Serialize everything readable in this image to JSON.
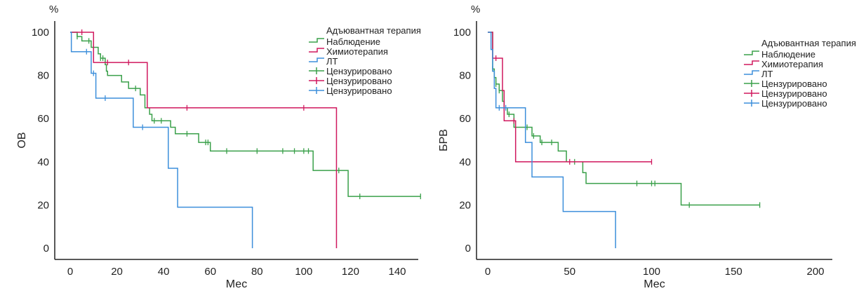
{
  "chart_data": [
    {
      "type": "line",
      "subtype": "kaplan-meier",
      "ylabel": "ОВ",
      "yunit": "%",
      "xlabel": "Мес",
      "xlim": [
        -8,
        160
      ],
      "ylim": [
        -8,
        106
      ],
      "xticks": [
        0,
        20,
        40,
        60,
        80,
        100,
        120,
        140
      ],
      "yticks": [
        0,
        20,
        40,
        60,
        80,
        100
      ],
      "legend": {
        "title": "Адъювантная терапия",
        "placement": "top-right"
      },
      "series": [
        {
          "name": "Наблюдение",
          "color": "#3aa04a",
          "censor_label": "Цензурировано",
          "steps": [
            [
              0,
              100
            ],
            [
              3,
              98
            ],
            [
              5,
              96
            ],
            [
              9,
              93
            ],
            [
              12,
              90
            ],
            [
              13,
              88
            ],
            [
              15,
              85
            ],
            [
              15.5,
              82
            ],
            [
              16,
              80
            ],
            [
              22,
              77
            ],
            [
              25,
              74
            ],
            [
              30,
              71
            ],
            [
              32,
              65
            ],
            [
              34,
              62
            ],
            [
              35,
              59
            ],
            [
              43,
              56
            ],
            [
              45,
              53
            ],
            [
              55,
              49
            ],
            [
              60,
              45
            ],
            [
              104,
              36
            ],
            [
              119,
              24
            ]
          ],
          "end": 150,
          "censored": [
            3,
            8,
            10,
            13,
            14,
            28,
            36,
            39,
            50,
            58,
            59,
            67,
            80,
            91,
            96,
            100,
            102,
            115,
            124,
            150
          ]
        },
        {
          "name": "Химиотерапия",
          "color": "#d0185e",
          "censor_label": "Цензурировано",
          "steps": [
            [
              0,
              100
            ],
            [
              10,
              86
            ],
            [
              33,
              65
            ],
            [
              114,
              0
            ]
          ],
          "end": 114,
          "censored": [
            5,
            16,
            25,
            50,
            100
          ]
        },
        {
          "name": "ЛТ",
          "color": "#3d8fdb",
          "censor_label": "Цензурировано",
          "steps": [
            [
              0,
              100
            ],
            [
              0.5,
              91
            ],
            [
              9,
              81
            ],
            [
              11,
              69.5
            ],
            [
              27,
              56
            ],
            [
              42,
              37
            ],
            [
              46,
              19
            ],
            [
              78,
              0
            ]
          ],
          "end": 78,
          "censored": [
            7,
            10,
            15,
            31
          ]
        }
      ]
    },
    {
      "type": "line",
      "subtype": "kaplan-meier",
      "ylabel": "БРВ",
      "yunit": "%",
      "xlabel": "Мес",
      "xlim": [
        -10,
        210
      ],
      "ylim": [
        -8,
        106
      ],
      "xticks": [
        0,
        50,
        100,
        150,
        200
      ],
      "yticks": [
        0,
        20,
        40,
        60,
        80,
        100
      ],
      "legend": {
        "title": "Адъювантная терапия",
        "placement": "top-right"
      },
      "series": [
        {
          "name": "Наблюдение",
          "color": "#3aa04a",
          "censor_label": "Цензурировано",
          "steps": [
            [
              0,
              100
            ],
            [
              3,
              83
            ],
            [
              4,
              79
            ],
            [
              5,
              76
            ],
            [
              7,
              73
            ],
            [
              9,
              68
            ],
            [
              10,
              65
            ],
            [
              12,
              62
            ],
            [
              16,
              56
            ],
            [
              27,
              52
            ],
            [
              32,
              49
            ],
            [
              43,
              45
            ],
            [
              48,
              40
            ],
            [
              58,
              35
            ],
            [
              60,
              30
            ],
            [
              118,
              20
            ]
          ],
          "end": 166,
          "censored": [
            3,
            5,
            7,
            10,
            13,
            24,
            28,
            33,
            39,
            53,
            91,
            100,
            102,
            123,
            166
          ]
        },
        {
          "name": "Химиотерапия",
          "color": "#d0185e",
          "censor_label": "Цензурировано",
          "steps": [
            [
              0,
              100
            ],
            [
              3,
              88
            ],
            [
              9,
              73
            ],
            [
              10,
              59
            ],
            [
              17,
              40
            ]
          ],
          "end": 100,
          "censored": [
            5,
            16,
            50,
            100
          ]
        },
        {
          "name": "ЛТ",
          "color": "#3d8fdb",
          "censor_label": "Цензурировано",
          "steps": [
            [
              0,
              100
            ],
            [
              2,
              92
            ],
            [
              3,
              82
            ],
            [
              4,
              74
            ],
            [
              5,
              65
            ],
            [
              23,
              49
            ],
            [
              27,
              33
            ],
            [
              46,
              17
            ],
            [
              78,
              0
            ]
          ],
          "end": 78,
          "censored": [
            7,
            11
          ]
        }
      ]
    }
  ]
}
